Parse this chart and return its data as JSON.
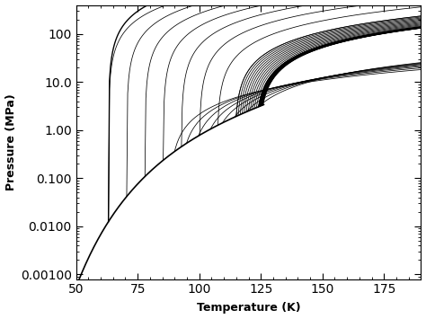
{
  "title": "",
  "xlabel": "Temperature (K)",
  "ylabel": "Pressure (MPa)",
  "xlim": [
    50,
    190
  ],
  "ylim_log": [
    0.0008,
    400
  ],
  "x_ticks": [
    50.0,
    75.0,
    100,
    125,
    150,
    175
  ],
  "y_ticks": [
    0.001,
    0.01,
    0.1,
    1.0,
    10.0,
    100
  ],
  "y_tick_labels": [
    "0.00100",
    "0.0100",
    "0.100",
    "1.00",
    "10.0",
    "100"
  ],
  "background_color": "#ffffff",
  "line_color": "#000000",
  "fig_width": 4.74,
  "fig_height": 3.55,
  "dpi": 100,
  "critical_T": 126.19,
  "critical_P": 3.3958,
  "T_min": 50,
  "T_max": 190,
  "n_isochores": 35
}
